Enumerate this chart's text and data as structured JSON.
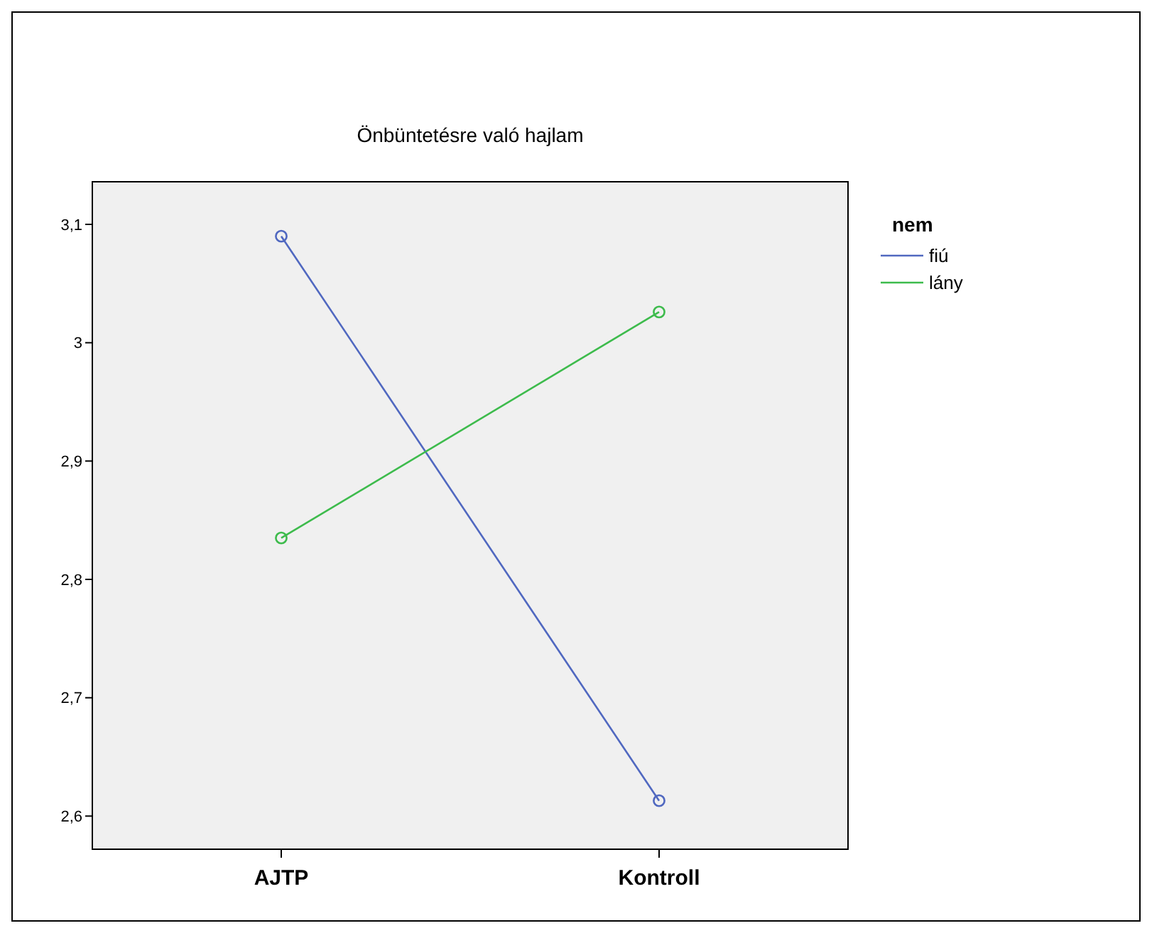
{
  "chart_data": {
    "type": "line",
    "title": "Önbüntetésre való hajlam",
    "categories": [
      "AJTP",
      "Kontroll"
    ],
    "series": [
      {
        "name": "fiú",
        "color": "#5068c0",
        "values": [
          3.09,
          2.613
        ]
      },
      {
        "name": "lány",
        "color": "#3dbb4c",
        "values": [
          2.835,
          3.026
        ]
      }
    ],
    "ylim": [
      2.572,
      3.136
    ],
    "yticks": [
      {
        "value": 2.6,
        "label": "2,6"
      },
      {
        "value": 2.7,
        "label": "2,7"
      },
      {
        "value": 2.8,
        "label": "2,8"
      },
      {
        "value": 2.9,
        "label": "2,9"
      },
      {
        "value": 3,
        "label": "3"
      },
      {
        "value": 3.1,
        "label": "3,1"
      }
    ],
    "legend": "right",
    "legend_title": "nem",
    "marker": "circle",
    "line_style": "solid",
    "grid": false
  }
}
